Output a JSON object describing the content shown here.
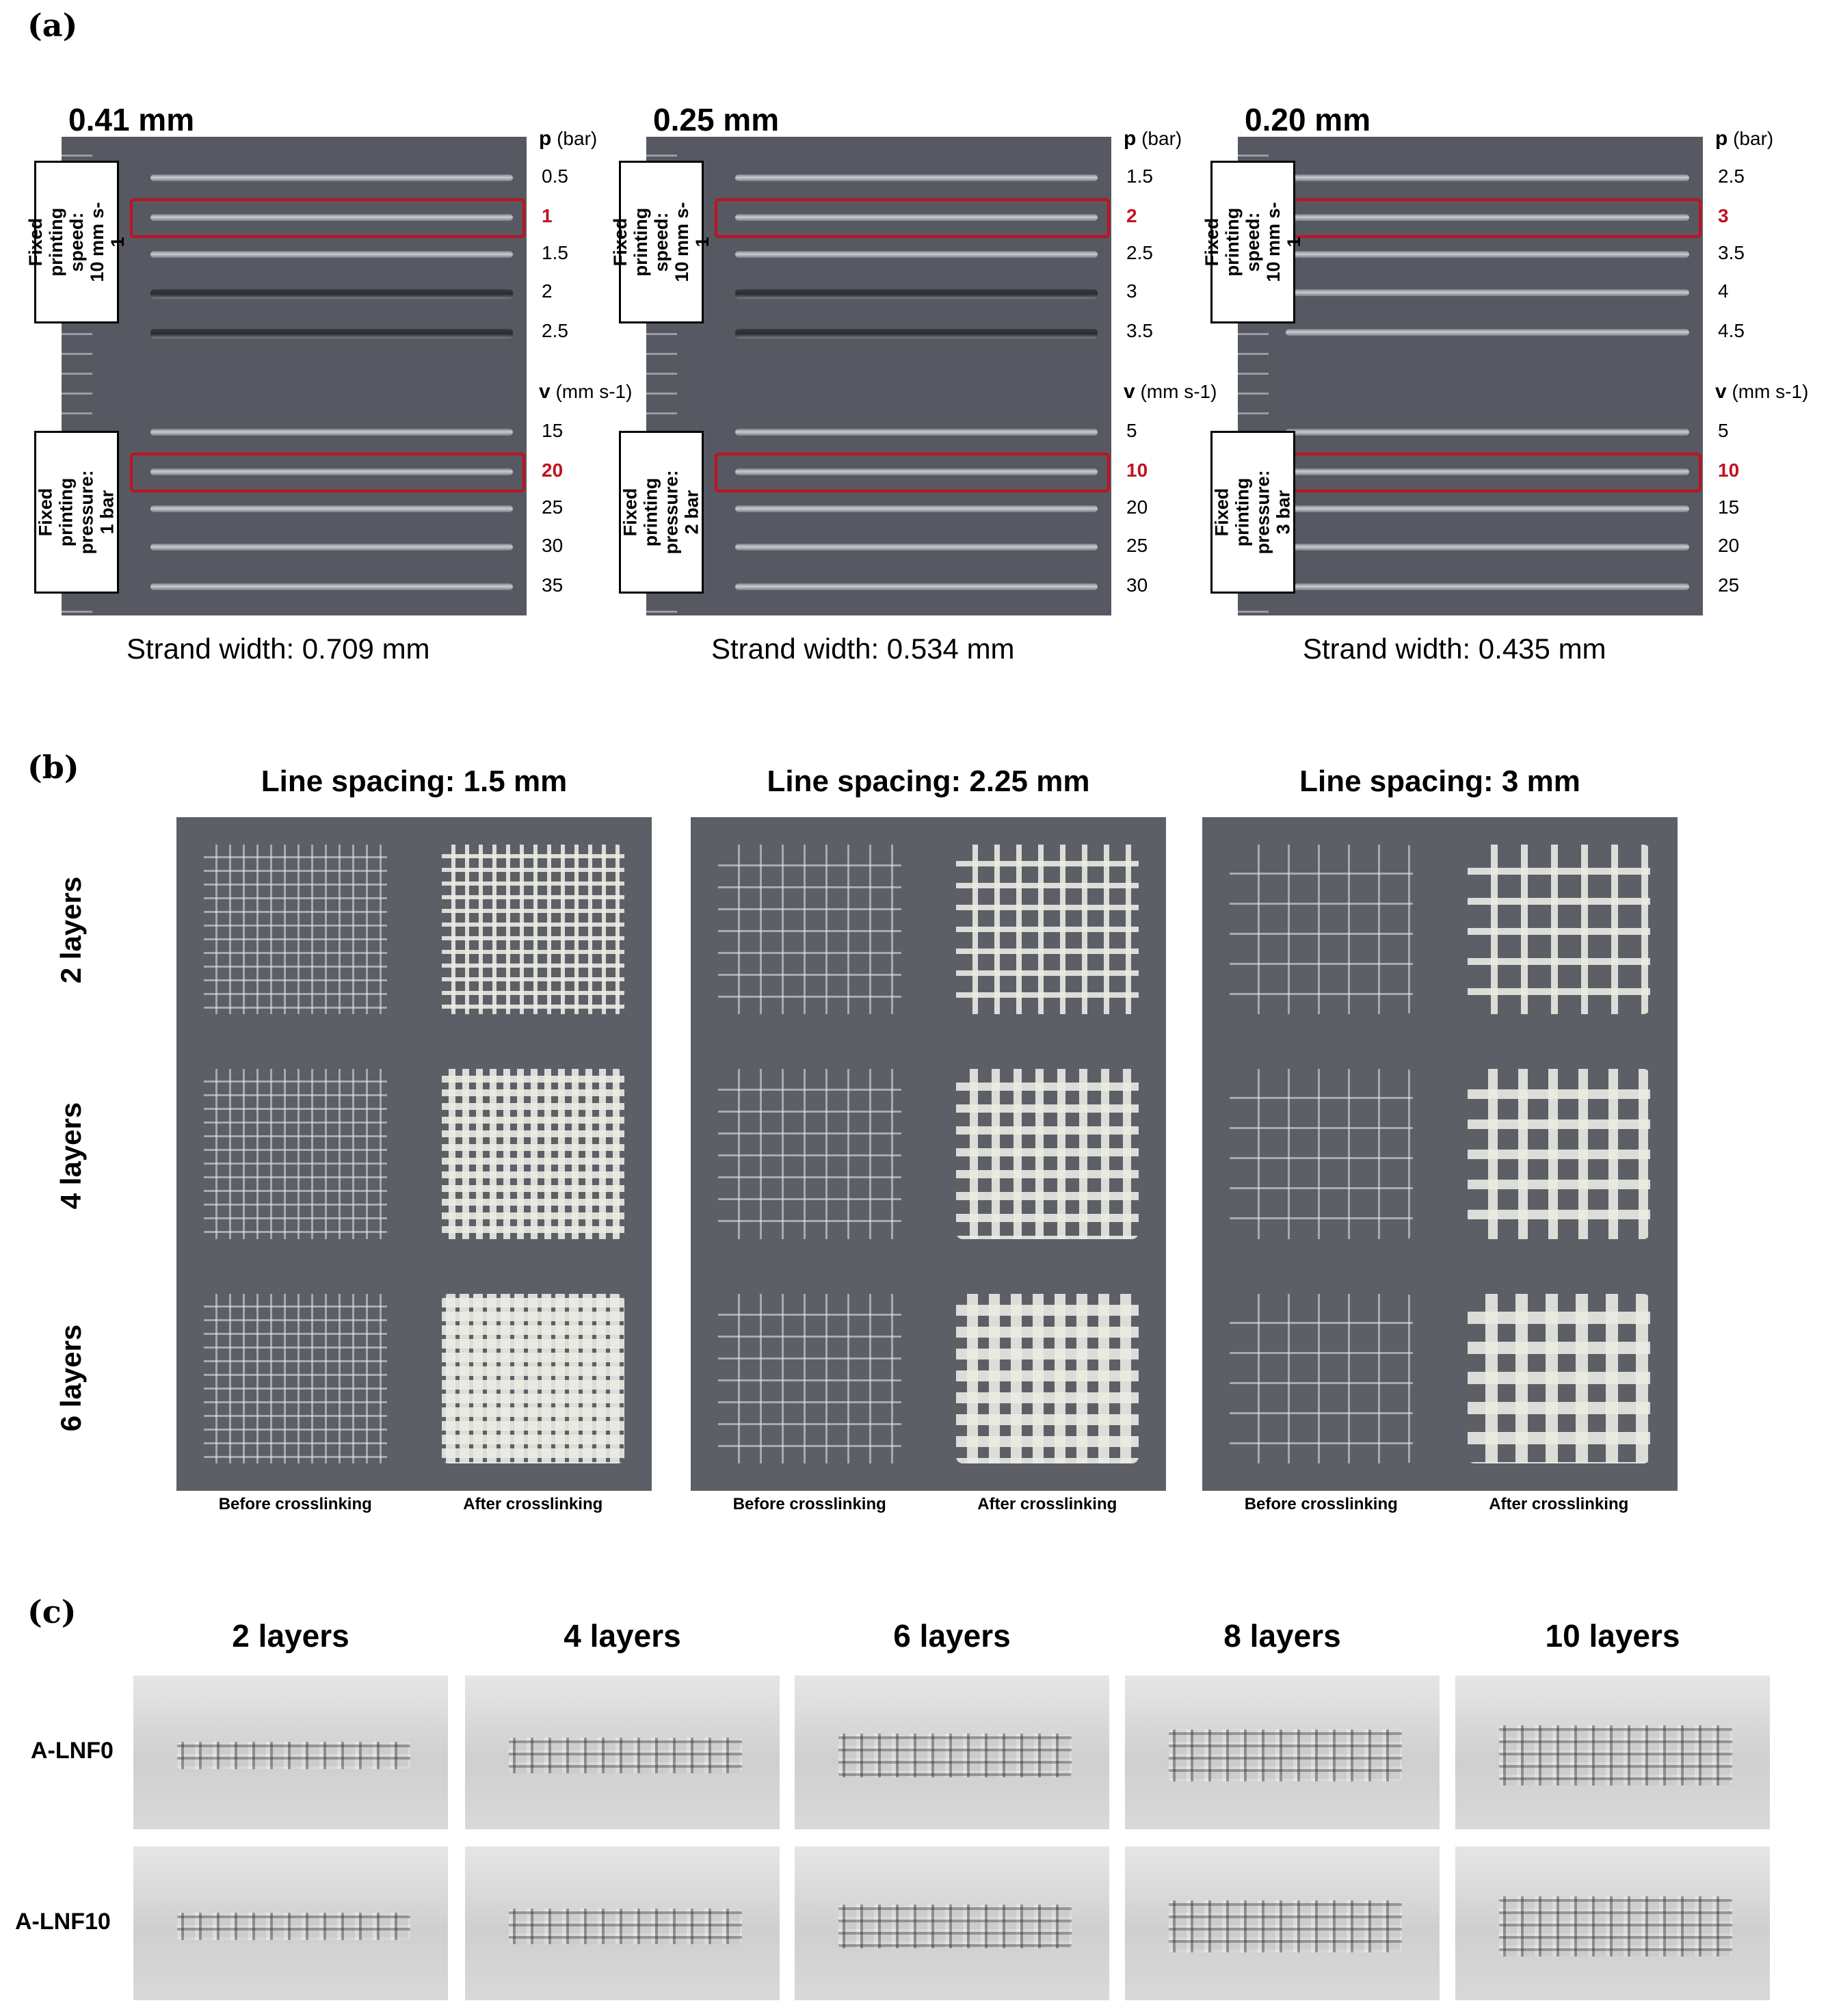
{
  "panel_a": {
    "label": "(a)",
    "samples": [
      {
        "nozzle": "0.41 mm",
        "p_values": [
          "0.5",
          "1",
          "1.5",
          "2",
          "2.5"
        ],
        "p_selected": "1",
        "v_values": [
          "15",
          "20",
          "25",
          "30",
          "35"
        ],
        "v_selected": "20",
        "speed_box": "Fixed printing\nspeed:\n10 mm s-1",
        "pressure_box": "Fixed printing\npressure:\n1 bar",
        "strand_width": "Strand width: 0.709 mm"
      },
      {
        "nozzle": "0.25 mm",
        "p_values": [
          "1.5",
          "2",
          "2.5",
          "3",
          "3.5"
        ],
        "p_selected": "2",
        "v_values": [
          "5",
          "10",
          "20",
          "25",
          "30"
        ],
        "v_selected": "10",
        "speed_box": "Fixed printing\nspeed:\n10 mm s-1",
        "pressure_box": "Fixed printing\npressure:\n2 bar",
        "strand_width": "Strand width: 0.534 mm"
      },
      {
        "nozzle": "0.20 mm",
        "p_values": [
          "2.5",
          "3",
          "3.5",
          "4",
          "4.5"
        ],
        "p_selected": "3",
        "v_values": [
          "5",
          "10",
          "15",
          "20",
          "25"
        ],
        "v_selected": "10",
        "speed_box": "Fixed printing\nspeed:\n10 mm s-1",
        "pressure_box": "Fixed printing\npressure:\n3 bar",
        "strand_width": "Strand width: 0.435 mm"
      }
    ],
    "p_axis": {
      "symbol": "p",
      "unit": "(bar)"
    },
    "v_axis": {
      "symbol": "v",
      "unit": "(mm s-1)"
    }
  },
  "panel_b": {
    "label": "(b)",
    "spacings": [
      "Line spacing: 1.5 mm",
      "Line spacing: 2.25 mm",
      "Line spacing: 3 mm"
    ],
    "rows": [
      "2 layers",
      "4 layers",
      "6 layers"
    ],
    "before": "Before crosslinking",
    "after": "After crosslinking"
  },
  "panel_c": {
    "label": "(c)",
    "columns": [
      "2 layers",
      "4 layers",
      "6 layers",
      "8 layers",
      "10 layers"
    ],
    "rows": [
      "A-LNF0",
      "A-LNF10"
    ]
  }
}
